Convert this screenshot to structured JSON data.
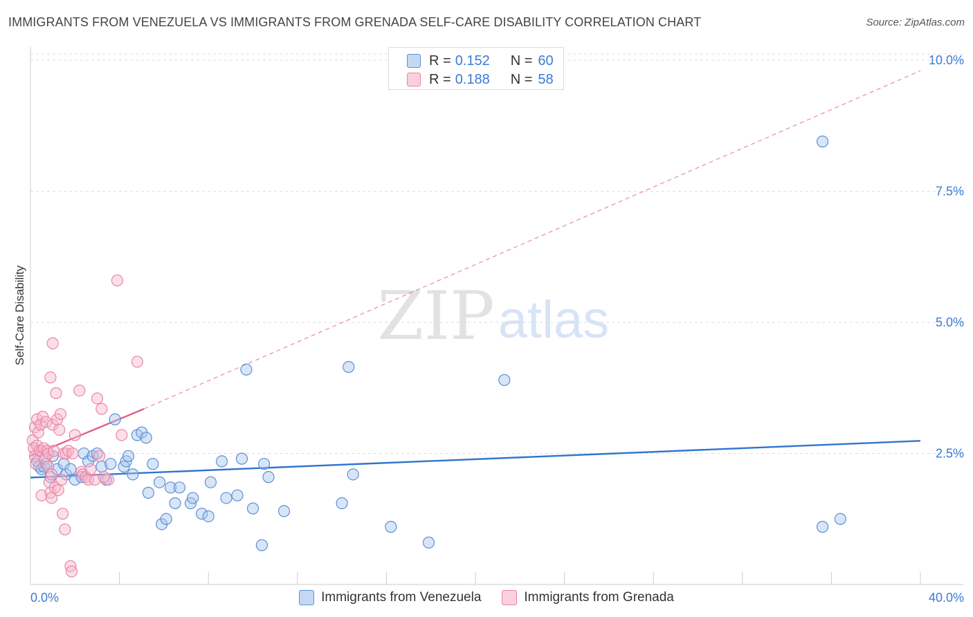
{
  "title": "IMMIGRANTS FROM VENEZUELA VS IMMIGRANTS FROM GRENADA SELF-CARE DISABILITY CORRELATION CHART",
  "source": "Source: ZipAtlas.com",
  "watermark": {
    "zip": "ZIP",
    "atlas": "atlas"
  },
  "colors": {
    "blue_fill": "#a9c6ee",
    "blue_stroke": "#5b8fd6",
    "blue_line": "#2f74d0",
    "pink_fill": "#f6b8cb",
    "pink_stroke": "#e985a6",
    "pink_line": "#e0608a",
    "axis_text": "#3a7bd5",
    "grid": "#dddddd"
  },
  "legend_top": {
    "rows": [
      {
        "r_label": "R =",
        "r_value": "0.152",
        "n_label": "N =",
        "n_value": "60",
        "series": "blue"
      },
      {
        "r_label": "R =",
        "r_value": "0.188",
        "n_label": "N =",
        "n_value": "58",
        "series": "pink"
      }
    ]
  },
  "legend_bottom": [
    {
      "label": "Immigrants from Venezuela",
      "series": "blue"
    },
    {
      "label": "Immigrants from Grenada",
      "series": "pink"
    }
  ],
  "chart_data": {
    "type": "scatter",
    "title": "IMMIGRANTS FROM VENEZUELA VS IMMIGRANTS FROM GRENADA SELF-CARE DISABILITY CORRELATION CHART",
    "xlabel": "",
    "ylabel": "Self-Care Disability",
    "xlim": [
      0,
      40
    ],
    "ylim": [
      0,
      10.2
    ],
    "x_tick_labels": [
      "0.0%",
      "40.0%"
    ],
    "y_ticks": [
      2.5,
      5.0,
      7.5,
      10.0
    ],
    "y_tick_labels": [
      "2.5%",
      "5.0%",
      "7.5%",
      "10.0%"
    ],
    "grid": true,
    "legend_position": "top-center",
    "series": [
      {
        "name": "Immigrants from Venezuela",
        "color": "blue",
        "trend": {
          "x0": 0,
          "y0": 2.04,
          "x1": 40,
          "y1": 2.74,
          "dashed_extension": false
        },
        "points": [
          [
            0.3,
            2.35
          ],
          [
            0.4,
            2.25
          ],
          [
            0.5,
            2.2
          ],
          [
            0.6,
            2.25
          ],
          [
            0.7,
            2.3
          ],
          [
            0.9,
            2.05
          ],
          [
            1.0,
            2.45
          ],
          [
            1.2,
            2.2
          ],
          [
            1.5,
            2.3
          ],
          [
            1.6,
            2.1
          ],
          [
            1.8,
            2.2
          ],
          [
            2.0,
            2.0
          ],
          [
            2.3,
            2.05
          ],
          [
            2.4,
            2.5
          ],
          [
            2.6,
            2.35
          ],
          [
            2.8,
            2.45
          ],
          [
            3.0,
            2.5
          ],
          [
            3.2,
            2.25
          ],
          [
            3.4,
            2.0
          ],
          [
            3.6,
            2.3
          ],
          [
            3.8,
            3.15
          ],
          [
            4.2,
            2.25
          ],
          [
            4.3,
            2.35
          ],
          [
            4.4,
            2.45
          ],
          [
            4.6,
            2.1
          ],
          [
            4.8,
            2.85
          ],
          [
            5.0,
            2.9
          ],
          [
            5.2,
            2.8
          ],
          [
            5.3,
            1.75
          ],
          [
            5.5,
            2.3
          ],
          [
            5.8,
            1.95
          ],
          [
            5.9,
            1.15
          ],
          [
            6.1,
            1.25
          ],
          [
            6.3,
            1.85
          ],
          [
            6.5,
            1.55
          ],
          [
            6.7,
            1.85
          ],
          [
            7.2,
            1.55
          ],
          [
            7.3,
            1.65
          ],
          [
            7.7,
            1.35
          ],
          [
            8.0,
            1.3
          ],
          [
            8.1,
            1.95
          ],
          [
            8.6,
            2.35
          ],
          [
            8.8,
            1.65
          ],
          [
            9.3,
            1.7
          ],
          [
            9.5,
            2.4
          ],
          [
            9.7,
            4.1
          ],
          [
            10.0,
            1.45
          ],
          [
            10.4,
            0.75
          ],
          [
            10.5,
            2.3
          ],
          [
            10.7,
            2.05
          ],
          [
            11.4,
            1.4
          ],
          [
            14.0,
            1.55
          ],
          [
            14.3,
            4.15
          ],
          [
            14.5,
            2.1
          ],
          [
            16.2,
            1.1
          ],
          [
            17.9,
            0.8
          ],
          [
            21.3,
            3.9
          ],
          [
            35.6,
            1.1
          ],
          [
            35.6,
            8.45
          ],
          [
            36.4,
            1.25
          ]
        ]
      },
      {
        "name": "Immigrants from Grenada",
        "color": "pink",
        "trend": {
          "x0": 0,
          "y0": 2.45,
          "x1": 5.1,
          "y1": 3.35,
          "dashed_extension": true,
          "ext_x1": 40,
          "ext_y1": 9.8
        },
        "points": [
          [
            0.1,
            2.75
          ],
          [
            0.15,
            2.6
          ],
          [
            0.2,
            3.0
          ],
          [
            0.2,
            2.45
          ],
          [
            0.25,
            2.3
          ],
          [
            0.3,
            3.15
          ],
          [
            0.3,
            2.65
          ],
          [
            0.35,
            2.9
          ],
          [
            0.4,
            2.55
          ],
          [
            0.45,
            3.05
          ],
          [
            0.5,
            2.55
          ],
          [
            0.5,
            1.7
          ],
          [
            0.55,
            3.2
          ],
          [
            0.6,
            2.6
          ],
          [
            0.65,
            2.4
          ],
          [
            0.7,
            3.1
          ],
          [
            0.75,
            2.55
          ],
          [
            0.8,
            2.5
          ],
          [
            0.8,
            2.25
          ],
          [
            0.85,
            1.95
          ],
          [
            0.9,
            1.75
          ],
          [
            0.9,
            3.95
          ],
          [
            0.95,
            2.1
          ],
          [
            0.95,
            1.65
          ],
          [
            1.0,
            4.6
          ],
          [
            1.0,
            3.05
          ],
          [
            1.05,
            2.55
          ],
          [
            1.1,
            1.85
          ],
          [
            1.15,
            3.65
          ],
          [
            1.2,
            3.15
          ],
          [
            1.25,
            1.8
          ],
          [
            1.3,
            2.95
          ],
          [
            1.35,
            3.25
          ],
          [
            1.4,
            2.0
          ],
          [
            1.45,
            1.35
          ],
          [
            1.5,
            2.5
          ],
          [
            1.55,
            1.05
          ],
          [
            1.6,
            2.5
          ],
          [
            1.7,
            2.55
          ],
          [
            1.8,
            0.35
          ],
          [
            1.85,
            0.25
          ],
          [
            1.9,
            2.5
          ],
          [
            2.0,
            2.85
          ],
          [
            2.2,
            3.7
          ],
          [
            2.3,
            2.15
          ],
          [
            2.35,
            2.1
          ],
          [
            2.5,
            2.05
          ],
          [
            2.6,
            2.0
          ],
          [
            2.7,
            2.2
          ],
          [
            2.9,
            2.0
          ],
          [
            3.0,
            3.55
          ],
          [
            3.1,
            2.45
          ],
          [
            3.2,
            3.35
          ],
          [
            3.5,
            2.0
          ],
          [
            3.9,
            5.8
          ],
          [
            4.1,
            2.85
          ],
          [
            4.8,
            4.25
          ],
          [
            3.3,
            2.05
          ]
        ]
      }
    ]
  }
}
